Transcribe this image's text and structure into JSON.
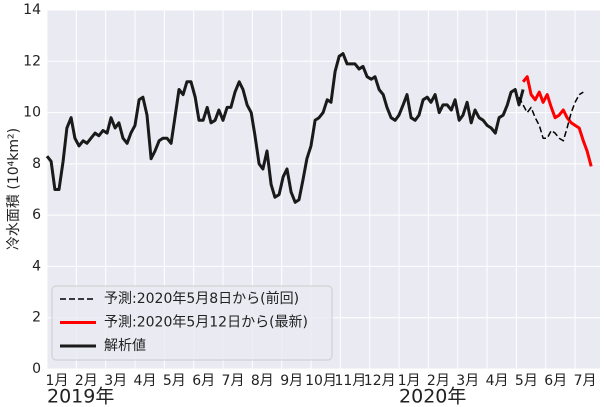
{
  "chart_data": {
    "type": "line",
    "ylabel": "冷水面積 (10⁴km²)",
    "x": [
      0,
      0.14,
      0.27,
      0.41,
      0.55,
      0.68,
      0.82,
      0.95,
      1.09,
      1.23,
      1.36,
      1.5,
      1.64,
      1.77,
      1.91,
      2.05,
      2.18,
      2.32,
      2.45,
      2.59,
      2.73,
      2.86,
      3,
      3.14,
      3.27,
      3.41,
      3.55,
      3.68,
      3.82,
      3.95,
      4.09,
      4.23,
      4.36,
      4.5,
      4.64,
      4.77,
      4.91,
      5.05,
      5.18,
      5.32,
      5.46,
      5.59,
      5.73,
      5.86,
      6,
      6.14,
      6.27,
      6.41,
      6.55,
      6.68,
      6.82,
      6.96,
      7.09,
      7.23,
      7.36,
      7.5,
      7.64,
      7.77,
      7.91,
      8.05,
      8.18,
      8.32,
      8.46,
      8.59,
      8.73,
      8.86,
      9,
      9.14,
      9.27,
      9.41,
      9.55,
      9.68,
      9.82,
      9.96,
      10.09,
      10.23,
      10.37,
      10.5,
      10.64,
      10.77,
      10.91,
      11.05,
      11.18,
      11.32,
      11.46,
      11.59,
      11.73,
      11.87,
      12,
      12.14,
      12.27,
      12.41,
      12.55,
      12.68,
      12.82,
      12.96,
      13.09,
      13.23,
      13.37,
      13.5,
      13.64,
      13.78,
      13.91,
      14.05,
      14.18,
      14.32,
      14.46,
      14.59,
      14.73,
      14.87,
      15,
      15.14,
      15.28,
      15.41,
      15.55,
      15.69,
      15.82,
      15.96,
      16.09,
      16.23,
      16.37,
      16.5,
      16.64,
      16.78,
      16.91,
      17.05,
      17.19,
      17.32,
      17.46,
      17.6,
      17.73,
      17.87,
      18,
      18.14,
      18.28,
      18.41,
      18.55
    ],
    "series": [
      {
        "name": "予測:2020年5月8日から(前回)",
        "color": "#000000",
        "linestyle": "dashed",
        "linewidth": 1.5,
        "values": [
          null,
          null,
          null,
          null,
          null,
          null,
          null,
          null,
          null,
          null,
          null,
          null,
          null,
          null,
          null,
          null,
          null,
          null,
          null,
          null,
          null,
          null,
          null,
          null,
          null,
          null,
          null,
          null,
          null,
          null,
          null,
          null,
          null,
          null,
          null,
          null,
          null,
          null,
          null,
          null,
          null,
          null,
          null,
          null,
          null,
          null,
          null,
          null,
          null,
          null,
          null,
          null,
          null,
          null,
          null,
          null,
          null,
          null,
          null,
          null,
          null,
          null,
          null,
          null,
          null,
          null,
          null,
          null,
          null,
          null,
          null,
          null,
          null,
          null,
          null,
          null,
          null,
          null,
          null,
          null,
          null,
          null,
          null,
          null,
          null,
          null,
          null,
          null,
          null,
          null,
          null,
          null,
          null,
          null,
          null,
          null,
          null,
          null,
          null,
          null,
          null,
          null,
          null,
          null,
          null,
          null,
          null,
          null,
          null,
          null,
          null,
          null,
          null,
          null,
          null,
          null,
          null,
          null,
          10.6,
          10.3,
          10.0,
          10.2,
          9.8,
          9.5,
          9.0,
          9.0,
          9.3,
          9.2,
          9.0,
          8.9,
          9.4,
          10.0,
          10.4,
          10.7,
          10.8,
          null,
          null
        ]
      },
      {
        "name": "予測:2020年5月12日から(最新)",
        "color": "#ff0000",
        "linestyle": "solid",
        "linewidth": 3,
        "values": [
          null,
          null,
          null,
          null,
          null,
          null,
          null,
          null,
          null,
          null,
          null,
          null,
          null,
          null,
          null,
          null,
          null,
          null,
          null,
          null,
          null,
          null,
          null,
          null,
          null,
          null,
          null,
          null,
          null,
          null,
          null,
          null,
          null,
          null,
          null,
          null,
          null,
          null,
          null,
          null,
          null,
          null,
          null,
          null,
          null,
          null,
          null,
          null,
          null,
          null,
          null,
          null,
          null,
          null,
          null,
          null,
          null,
          null,
          null,
          null,
          null,
          null,
          null,
          null,
          null,
          null,
          null,
          null,
          null,
          null,
          null,
          null,
          null,
          null,
          null,
          null,
          null,
          null,
          null,
          null,
          null,
          null,
          null,
          null,
          null,
          null,
          null,
          null,
          null,
          null,
          null,
          null,
          null,
          null,
          null,
          null,
          null,
          null,
          null,
          null,
          null,
          null,
          null,
          null,
          null,
          null,
          null,
          null,
          null,
          null,
          null,
          null,
          null,
          null,
          null,
          null,
          null,
          null,
          null,
          11.2,
          11.4,
          10.7,
          10.5,
          10.8,
          10.4,
          10.7,
          10.2,
          9.8,
          9.9,
          10.1,
          9.8,
          9.6,
          9.5,
          9.4,
          8.9,
          8.5,
          7.9
        ]
      },
      {
        "name": "解析値",
        "color": "#1a1a1a",
        "linestyle": "solid",
        "linewidth": 3,
        "values": [
          8.3,
          8.1,
          7.0,
          7.0,
          8.1,
          9.4,
          9.8,
          9.0,
          8.7,
          8.9,
          8.8,
          9.0,
          9.2,
          9.1,
          9.3,
          9.2,
          9.8,
          9.4,
          9.6,
          9.0,
          8.8,
          9.2,
          9.5,
          10.5,
          10.6,
          9.9,
          8.2,
          8.5,
          8.9,
          9.0,
          9.0,
          8.8,
          9.8,
          10.9,
          10.7,
          11.2,
          11.2,
          10.6,
          9.7,
          9.7,
          10.2,
          9.6,
          9.7,
          10.1,
          9.7,
          10.2,
          10.2,
          10.8,
          11.2,
          10.9,
          10.3,
          10.0,
          9.1,
          8.0,
          7.8,
          8.5,
          7.2,
          6.7,
          6.8,
          7.5,
          7.8,
          6.9,
          6.5,
          6.6,
          7.4,
          8.2,
          8.7,
          9.7,
          9.8,
          10.0,
          10.5,
          10.4,
          11.6,
          12.2,
          12.3,
          11.9,
          11.9,
          11.9,
          11.7,
          11.8,
          11.4,
          11.3,
          11.4,
          10.9,
          10.7,
          10.2,
          9.8,
          9.7,
          9.9,
          10.3,
          10.7,
          9.8,
          9.7,
          9.9,
          10.5,
          10.6,
          10.4,
          10.7,
          10.0,
          10.3,
          10.3,
          10.1,
          10.5,
          9.7,
          9.9,
          10.4,
          9.6,
          10.1,
          9.8,
          9.7,
          9.5,
          9.4,
          9.2,
          9.8,
          9.9,
          10.3,
          10.8,
          10.9,
          10.3,
          10.9,
          null,
          null,
          null,
          null,
          null,
          null,
          null,
          null,
          null,
          null,
          null,
          null,
          null,
          null,
          null,
          null,
          null
        ]
      }
    ],
    "xlim": [
      0,
      18.85
    ],
    "xticks": [
      {
        "value": 0,
        "label": "1月"
      },
      {
        "value": 1,
        "label": "2月"
      },
      {
        "value": 2,
        "label": "3月"
      },
      {
        "value": 3,
        "label": "4月"
      },
      {
        "value": 4,
        "label": "5月"
      },
      {
        "value": 5,
        "label": "6月"
      },
      {
        "value": 6,
        "label": "7月"
      },
      {
        "value": 7,
        "label": "8月"
      },
      {
        "value": 8,
        "label": "9月"
      },
      {
        "value": 9,
        "label": "10月"
      },
      {
        "value": 10,
        "label": "11月"
      },
      {
        "value": 11,
        "label": "12月"
      },
      {
        "value": 12,
        "label": "1月"
      },
      {
        "value": 13,
        "label": "2月"
      },
      {
        "value": 14,
        "label": "3月"
      },
      {
        "value": 15,
        "label": "4月"
      },
      {
        "value": 16,
        "label": "5月"
      },
      {
        "value": 17,
        "label": "6月"
      },
      {
        "value": 18,
        "label": "7月"
      }
    ],
    "year_labels": [
      {
        "value": 0,
        "label": "2019年"
      },
      {
        "value": 12,
        "label": "2020年"
      }
    ],
    "ylim": [
      0,
      14
    ],
    "yticks": [
      0,
      2,
      4,
      6,
      8,
      10,
      12,
      14
    ],
    "grid": true,
    "legend": "lower left"
  }
}
